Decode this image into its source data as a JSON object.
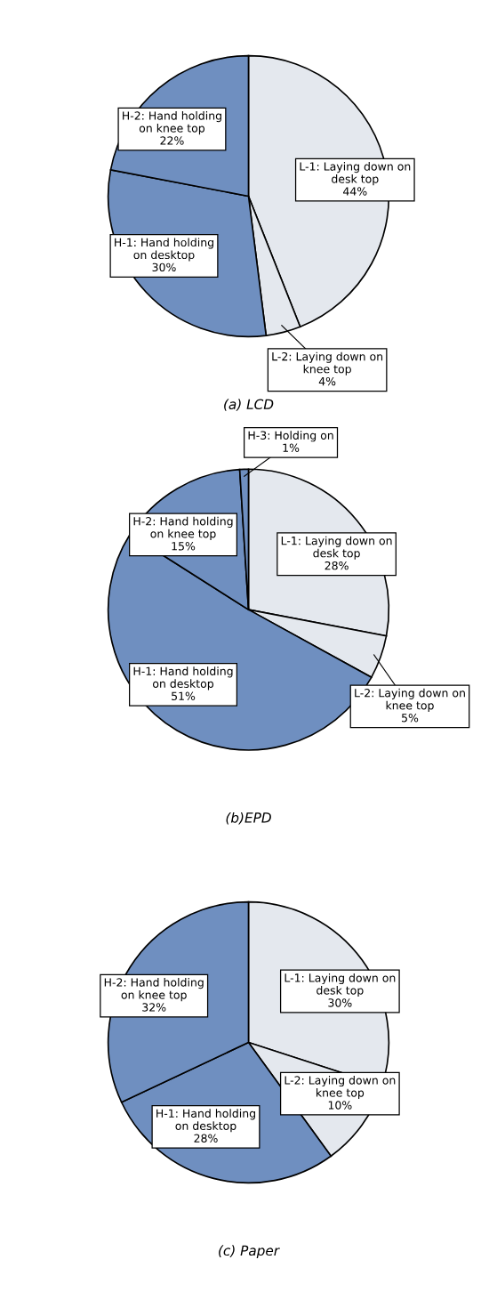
{
  "chart_data": [
    {
      "type": "pie",
      "title": "(a) LCD",
      "categories": [
        "L-1: Laying down on\ndesk top",
        "L-2: Laying down on\nknee top",
        "H-1: Hand holding\non desktop",
        "H-2: Hand holding\non knee top"
      ],
      "values": [
        44,
        4,
        30,
        22
      ],
      "value_labels": [
        "44%",
        "4%",
        "30%",
        "22%"
      ],
      "colors": [
        "#e4e8ee",
        "#e4e8ee",
        "#6f8fc0",
        "#6f8fc0"
      ]
    },
    {
      "type": "pie",
      "title": "(b)EPD",
      "categories": [
        "L-1: Laying down on\ndesk top",
        "L-2: Laying down on\nknee top",
        "H-1: Hand holding\non desktop",
        "H-2: Hand holding\non knee top",
        "H-3: Holding on"
      ],
      "values": [
        28,
        5,
        51,
        15,
        1
      ],
      "value_labels": [
        "28%",
        "5%",
        "51%",
        "15%",
        "1%"
      ],
      "colors": [
        "#e4e8ee",
        "#e4e8ee",
        "#6f8fc0",
        "#6f8fc0",
        "#6f8fc0"
      ]
    },
    {
      "type": "pie",
      "title": "(c) Paper",
      "categories": [
        "L-1: Laying down on\ndesk top",
        "L-2: Laying down on\nknee top",
        "H-1: Hand holding\non desktop",
        "H-2: Hand holding\non knee top"
      ],
      "values": [
        30,
        10,
        28,
        32
      ],
      "value_labels": [
        "30%",
        "10%",
        "28%",
        "32%"
      ],
      "colors": [
        "#e4e8ee",
        "#e4e8ee",
        "#6f8fc0",
        "#6f8fc0"
      ]
    }
  ]
}
